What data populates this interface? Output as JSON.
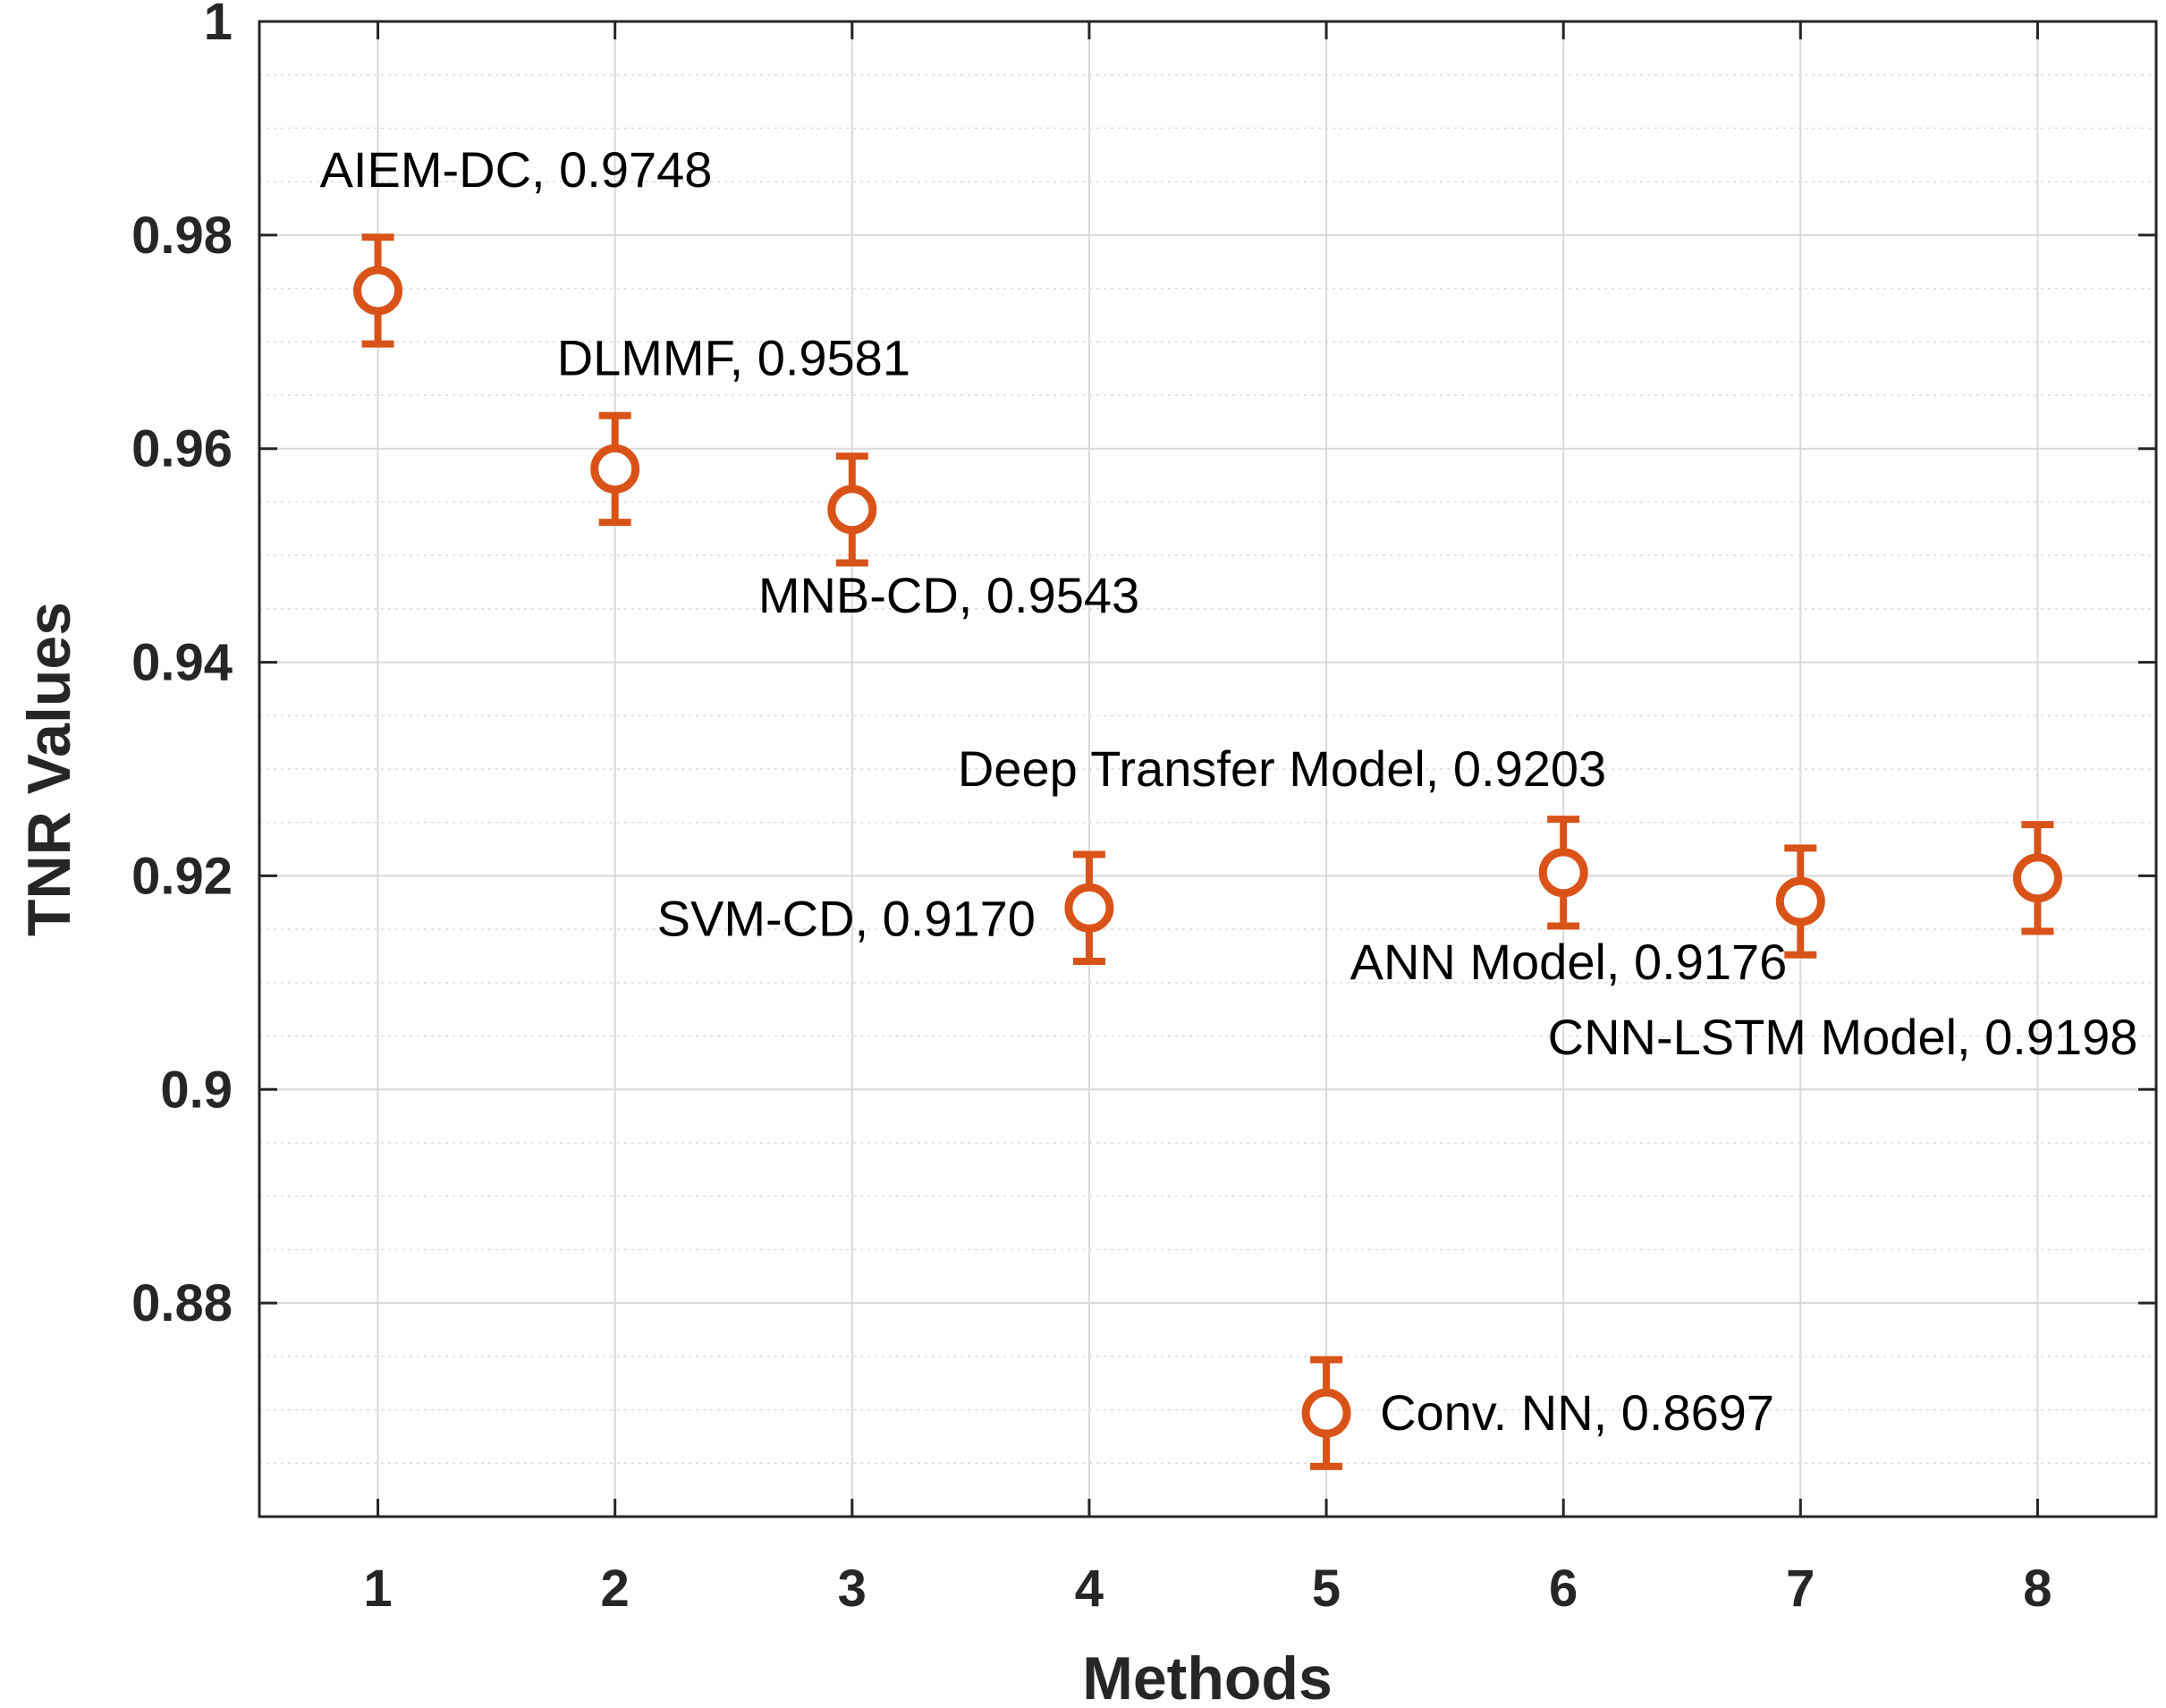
{
  "chart_data": {
    "type": "errorbar",
    "title": "",
    "xlabel": "Methods",
    "ylabel": "TNR Values",
    "xlim": [
      0.5,
      8.5
    ],
    "ylim": [
      0.86,
      1.0
    ],
    "x_ticks": [
      "1",
      "2",
      "3",
      "4",
      "5",
      "6",
      "7",
      "8"
    ],
    "y_ticks": [
      "0.88",
      "0.9",
      "0.92",
      "0.94",
      "0.96",
      "0.98",
      "1"
    ],
    "grid": true,
    "marker_color": "#d95319",
    "error": 0.005,
    "points": [
      {
        "x": 1,
        "y": 0.9748,
        "label": "AIEM-DC, 0.9748"
      },
      {
        "x": 2,
        "y": 0.9581,
        "label": "DLMMF, 0.9581"
      },
      {
        "x": 3,
        "y": 0.9543,
        "label": "MNB-CD, 0.9543"
      },
      {
        "x": 4,
        "y": 0.917,
        "label": "SVM-CD, 0.9170"
      },
      {
        "x": 5,
        "y": 0.8697,
        "label": "Conv. NN, 0.8697"
      },
      {
        "x": 6,
        "y": 0.9203,
        "label": "Deep Transfer Model, 0.9203"
      },
      {
        "x": 7,
        "y": 0.9176,
        "label": "ANN Model, 0.9176"
      },
      {
        "x": 8,
        "y": 0.9198,
        "label": "CNN-LSTM Model, 0.9198"
      }
    ]
  }
}
